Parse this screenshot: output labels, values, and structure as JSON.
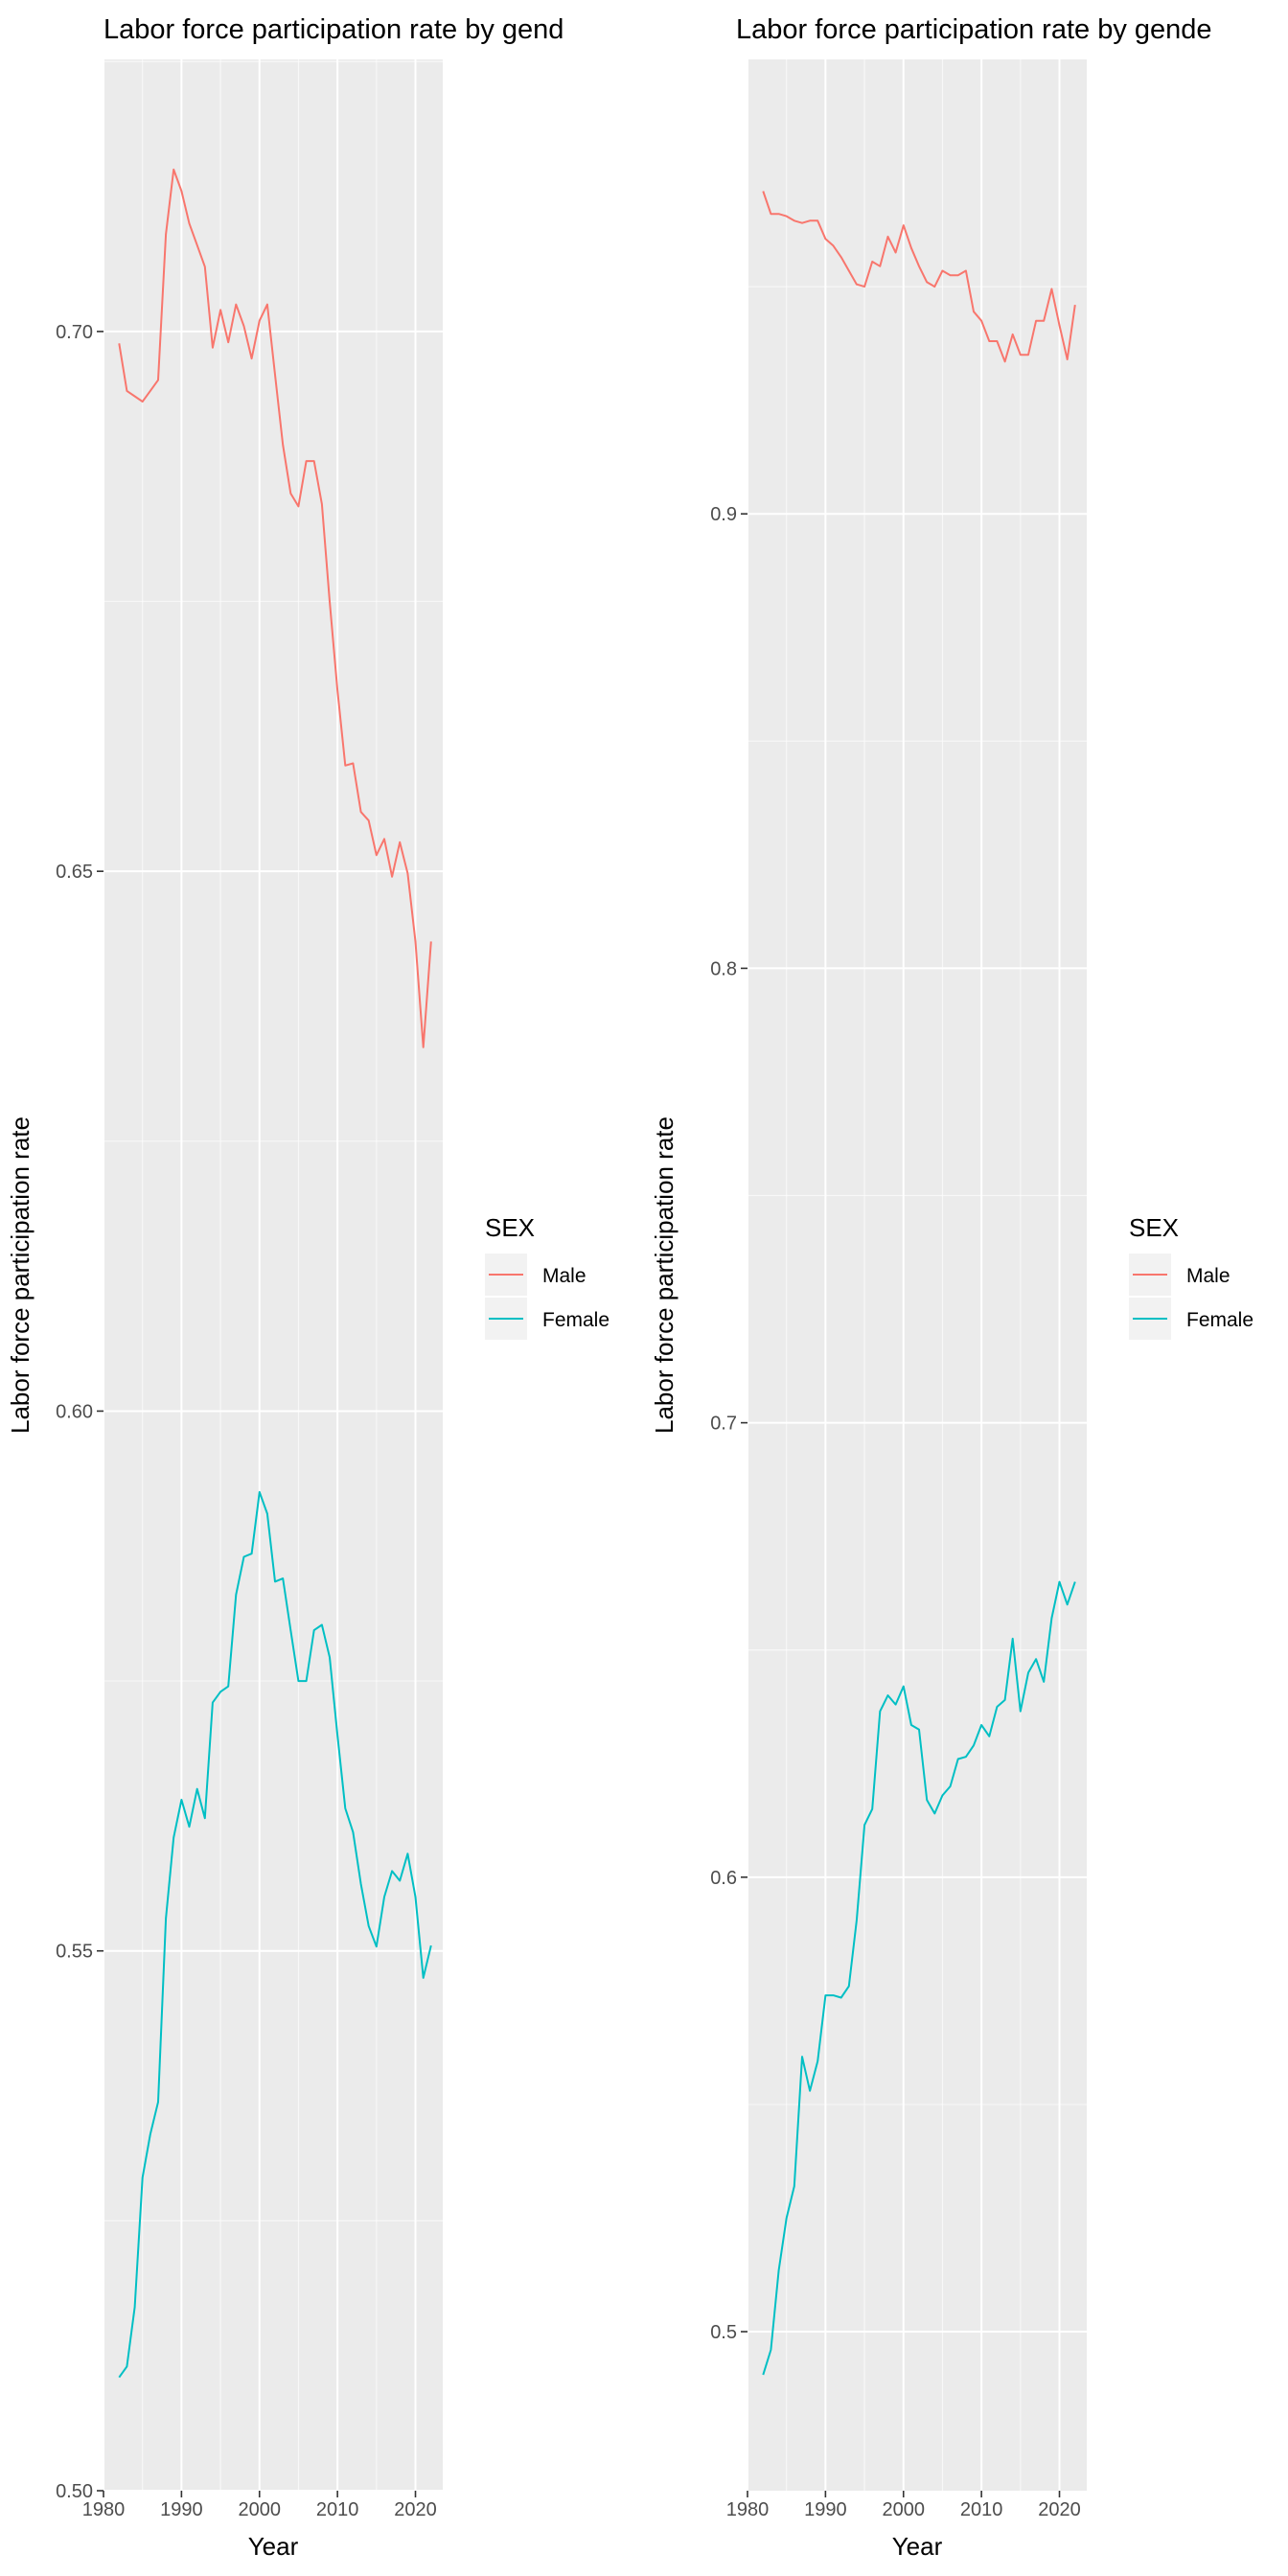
{
  "chart_data": [
    {
      "type": "line",
      "title": "Labor force participation rate by gend",
      "xlabel": "Year",
      "ylabel": "Labor force participation rate",
      "xlim": [
        1980,
        2023.5
      ],
      "ylim": [
        0.5,
        0.7252
      ],
      "xticks": [
        1980,
        1990,
        2000,
        2010,
        2020
      ],
      "xtick_labels": [
        "1980",
        "1990",
        "2000",
        "2010",
        "2020"
      ],
      "yticks": [
        0.5,
        0.55,
        0.6,
        0.65,
        0.7
      ],
      "ytick_labels": [
        "0.50",
        "0.55",
        "0.60",
        "0.65",
        "0.70"
      ],
      "grid": true,
      "legend": {
        "title": "SEX",
        "position": "right"
      },
      "x": [
        1982,
        1983,
        1984,
        1985,
        1986,
        1987,
        1988,
        1989,
        1990,
        1991,
        1992,
        1993,
        1994,
        1995,
        1996,
        1997,
        1998,
        1999,
        2000,
        2001,
        2002,
        2003,
        2004,
        2005,
        2006,
        2007,
        2008,
        2009,
        2010,
        2011,
        2012,
        2013,
        2014,
        2015,
        2016,
        2017,
        2018,
        2019,
        2020,
        2021,
        2022
      ],
      "series": [
        {
          "name": "Male",
          "color": "#F8766D",
          "values": [
            0.6989,
            0.6945,
            0.694,
            0.6935,
            0.6945,
            0.6955,
            0.709,
            0.715,
            0.713,
            0.71,
            0.708,
            0.706,
            0.6985,
            0.702,
            0.699,
            0.7025,
            0.7005,
            0.6975,
            0.701,
            0.7025,
            0.696,
            0.6895,
            0.685,
            0.6838,
            0.688,
            0.688,
            0.684,
            0.675,
            0.6668,
            0.6598,
            0.66,
            0.6555,
            0.6547,
            0.6515,
            0.653,
            0.6495,
            0.6527,
            0.6498,
            0.6435,
            0.6337,
            0.6435
          ]
        },
        {
          "name": "Female",
          "color": "#00BFC4",
          "values": [
            0.5105,
            0.5115,
            0.517,
            0.529,
            0.533,
            0.536,
            0.553,
            0.5605,
            0.564,
            0.5615,
            0.565,
            0.5623,
            0.573,
            0.574,
            0.5745,
            0.583,
            0.5865,
            0.5868,
            0.5925,
            0.5905,
            0.5842,
            0.5845,
            0.5797,
            0.575,
            0.575,
            0.5797,
            0.5802,
            0.5772,
            0.57,
            0.5632,
            0.561,
            0.5562,
            0.5523,
            0.5504,
            0.555,
            0.5574,
            0.5565,
            0.559,
            0.555,
            0.5475,
            0.5505
          ]
        }
      ]
    },
    {
      "type": "line",
      "title": "Labor force participation rate by gende",
      "xlabel": "Year",
      "ylabel": "Labor force participation rate",
      "xlim": [
        1980,
        2023.5
      ],
      "ylim": [
        0.465,
        1.0
      ],
      "xticks": [
        1980,
        1990,
        2000,
        2010,
        2020
      ],
      "xtick_labels": [
        "1980",
        "1990",
        "2000",
        "2010",
        "2020"
      ],
      "yticks": [
        0.5,
        0.6,
        0.7,
        0.8,
        0.9
      ],
      "ytick_labels": [
        "0.5",
        "0.6",
        "0.7",
        "0.8",
        "0.9"
      ],
      "grid": true,
      "legend": {
        "title": "SEX",
        "position": "right"
      },
      "x": [
        1982,
        1983,
        1984,
        1985,
        1986,
        1987,
        1988,
        1989,
        1990,
        1991,
        1992,
        1993,
        1994,
        1995,
        1996,
        1997,
        1998,
        1999,
        2000,
        2001,
        2002,
        2003,
        2004,
        2005,
        2006,
        2007,
        2008,
        2009,
        2010,
        2011,
        2012,
        2013,
        2014,
        2015,
        2016,
        2017,
        2018,
        2019,
        2020,
        2021,
        2022
      ],
      "series": [
        {
          "name": "Male",
          "color": "#F8766D",
          "values": [
            0.971,
            0.966,
            0.966,
            0.9655,
            0.9645,
            0.964,
            0.9645,
            0.9645,
            0.9605,
            0.959,
            0.9565,
            0.9535,
            0.9505,
            0.95,
            0.9555,
            0.9545,
            0.961,
            0.9575,
            0.9635,
            0.9585,
            0.9545,
            0.951,
            0.95,
            0.9535,
            0.9525,
            0.9525,
            0.9535,
            0.9445,
            0.9425,
            0.938,
            0.938,
            0.9335,
            0.9395,
            0.935,
            0.935,
            0.9425,
            0.9425,
            0.9495,
            0.9415,
            0.934,
            0.946
          ]
        },
        {
          "name": "Female",
          "color": "#00BFC4",
          "values": [
            0.4905,
            0.496,
            0.5135,
            0.525,
            0.532,
            0.5605,
            0.553,
            0.5595,
            0.574,
            0.574,
            0.5735,
            0.576,
            0.5905,
            0.6115,
            0.615,
            0.6365,
            0.64,
            0.638,
            0.642,
            0.6335,
            0.6325,
            0.617,
            0.614,
            0.618,
            0.62,
            0.626,
            0.6265,
            0.629,
            0.6335,
            0.631,
            0.6375,
            0.639,
            0.6525,
            0.6365,
            0.645,
            0.648,
            0.643,
            0.657,
            0.665,
            0.66,
            0.665
          ]
        }
      ]
    }
  ]
}
